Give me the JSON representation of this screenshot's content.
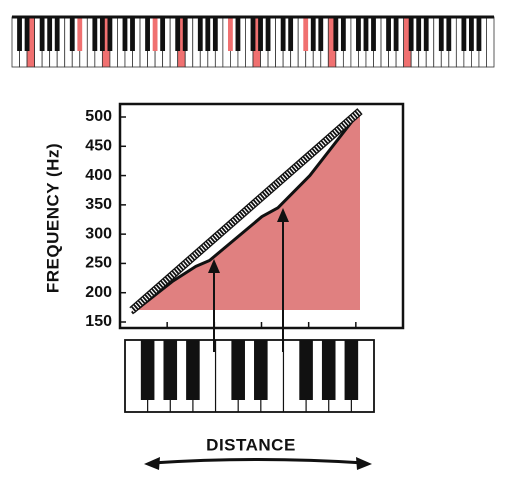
{
  "figure": {
    "y_axis_label": "FREQUENCY (Hz)",
    "x_axis_label": "DISTANCE",
    "y_ticks": [
      "500",
      "450",
      "400",
      "350",
      "300",
      "250",
      "200",
      "150"
    ]
  },
  "chart_data": {
    "type": "area",
    "ylabel": "FREQUENCY (Hz)",
    "xlabel": "DISTANCE",
    "ylim": [
      150,
      500
    ],
    "series": [
      {
        "style": "hatched",
        "x": [
          0,
          1
        ],
        "y": [
          170,
          510
        ]
      },
      {
        "style": "solid",
        "x": [
          0,
          0.18,
          0.28,
          0.34,
          0.57,
          0.64,
          0.78,
          1
        ],
        "y": [
          165,
          220,
          245,
          255,
          330,
          345,
          400,
          510
        ]
      }
    ],
    "colors": {
      "accent": "#e08080",
      "highlight_key": "#f07070",
      "ink": "#111111"
    }
  },
  "piano_strip": {
    "white_keys": 64,
    "highlighted_white_key_indices": [
      2,
      12,
      22,
      32,
      42,
      52
    ],
    "highlighted_black_key_indices": [
      8,
      18,
      28,
      38,
      48,
      58
    ]
  },
  "keyboard": {
    "white_keys": 11
  }
}
